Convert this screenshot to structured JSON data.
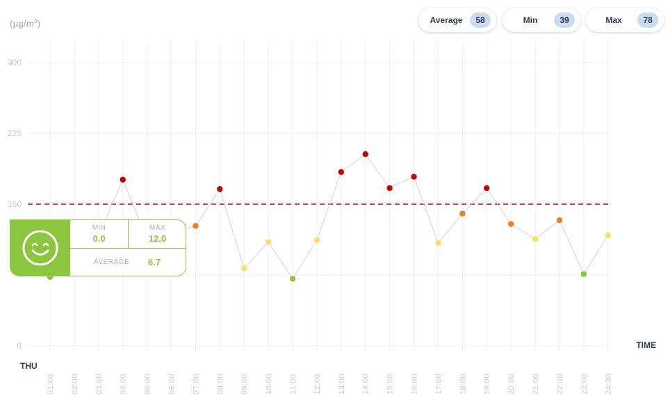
{
  "unit_label": "(µg/m",
  "unit_sup": "3",
  "unit_close": ")",
  "stats": {
    "average": {
      "label": "Average",
      "value": "58"
    },
    "min": {
      "label": "Min",
      "value": "39"
    },
    "max": {
      "label": "Max",
      "value": "78"
    }
  },
  "tooltip": {
    "min_label": "MIN",
    "min_value": "0.0",
    "max_label": "MAX",
    "max_value": "12.0",
    "avg_label": "AVERAGE",
    "avg_value": "6.7",
    "icon": "smiley-icon",
    "color": "#8cc63e"
  },
  "chart_data": {
    "type": "line",
    "xlabel": "TIME",
    "day_label": "THU",
    "ylim": [
      0,
      300
    ],
    "yticks": [
      0,
      75,
      150,
      225,
      300
    ],
    "ytick_labels": [
      "0",
      "",
      "150",
      "225",
      "300"
    ],
    "threshold": 150,
    "grid": true,
    "categories": [
      "01:00",
      "02:00",
      "03:00",
      "04:00",
      "05:00",
      "06:00",
      "07:00",
      "08:00",
      "09:00",
      "10:00",
      "11:00",
      "12:00",
      "13:00",
      "14:00",
      "15:00",
      "16:00",
      "17:00",
      "18:00",
      "19:00",
      "20:00",
      "21:00",
      "22:00",
      "23:00",
      "24:00"
    ],
    "series": [
      {
        "values": [
          73,
          92,
          118,
          176,
          113,
          118,
          127,
          166,
          82,
          110,
          71,
          112,
          184,
          203,
          167,
          179,
          109,
          140,
          167,
          129,
          113,
          133,
          76,
          117
        ],
        "point_colors": [
          "#8cc63e",
          "#8cc63e",
          "#8cc63e",
          "#c00000",
          "#f07d23",
          "#f07d23",
          "#f07d23",
          "#c00000",
          "#fbe05b",
          "#fbe05b",
          "#8cc63e",
          "#fbe05b",
          "#c00000",
          "#c00000",
          "#c00000",
          "#c00000",
          "#fbe05b",
          "#f07d23",
          "#c00000",
          "#f07d23",
          "#fbe05b",
          "#f07d23",
          "#8cc63e",
          "#fbe05b"
        ]
      }
    ]
  }
}
